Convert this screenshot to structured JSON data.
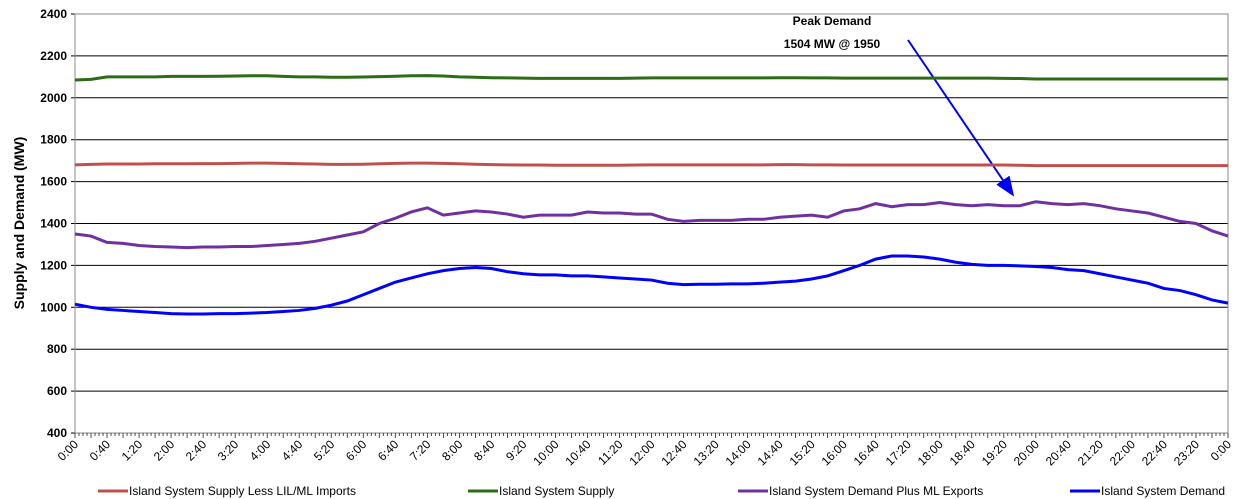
{
  "chart_data": {
    "type": "line",
    "y_label": "Supply and Demand (MW)",
    "annotation": [
      "Peak Demand",
      "1504 MW @ 1950"
    ],
    "categories": [
      "0:00",
      null,
      "0:40",
      null,
      "1:20",
      null,
      "2:00",
      null,
      "2:40",
      null,
      "3:20",
      null,
      "4:00",
      null,
      "4:40",
      null,
      "5:20",
      null,
      "6:00",
      null,
      "6:40",
      null,
      "7:20",
      null,
      "8:00",
      null,
      "8:40",
      null,
      "9:20",
      null,
      "10:00",
      null,
      "10:40",
      null,
      "11:20",
      null,
      "12:00",
      null,
      "12:40",
      null,
      "13:20",
      null,
      "14:00",
      null,
      "14:40",
      null,
      "15:20",
      null,
      "16:00",
      null,
      "16:40",
      null,
      "17:20",
      null,
      "18:00",
      null,
      "18:40",
      null,
      "19:20",
      null,
      "20:00",
      null,
      "20:40",
      null,
      "21:20",
      null,
      "22:00",
      null,
      "22:40",
      null,
      "23:20",
      null,
      "0:00"
    ],
    "series": [
      {
        "name": "Island System Supply Less LIL/ML Imports",
        "color": "#c0504d",
        "values": [
          1680,
          1682,
          1684,
          1684,
          1684,
          1685,
          1685,
          1685,
          1686,
          1686,
          1687,
          1688,
          1688,
          1687,
          1685,
          1684,
          1682,
          1682,
          1683,
          1685,
          1687,
          1688,
          1688,
          1687,
          1685,
          1683,
          1681,
          1680,
          1679,
          1679,
          1678,
          1678,
          1678,
          1678,
          1678,
          1679,
          1680,
          1680,
          1680,
          1680,
          1680,
          1680,
          1680,
          1680,
          1681,
          1681,
          1680,
          1680,
          1679,
          1679,
          1679,
          1679,
          1679,
          1679,
          1679,
          1679,
          1679,
          1679,
          1679,
          1678,
          1676,
          1676,
          1676,
          1676,
          1676,
          1676,
          1676,
          1676,
          1676,
          1676,
          1676,
          1676,
          1676
        ]
      },
      {
        "name": "Island System Supply",
        "color": "#2e6b17",
        "values": [
          2085,
          2088,
          2100,
          2100,
          2100,
          2100,
          2102,
          2102,
          2102,
          2103,
          2104,
          2105,
          2105,
          2102,
          2100,
          2100,
          2098,
          2098,
          2099,
          2101,
          2103,
          2105,
          2106,
          2104,
          2100,
          2098,
          2096,
          2095,
          2094,
          2093,
          2093,
          2093,
          2093,
          2093,
          2093,
          2094,
          2095,
          2095,
          2095,
          2095,
          2095,
          2095,
          2095,
          2095,
          2096,
          2096,
          2095,
          2095,
          2094,
          2094,
          2094,
          2094,
          2094,
          2094,
          2094,
          2094,
          2094,
          2094,
          2093,
          2092,
          2090,
          2090,
          2090,
          2090,
          2090,
          2090,
          2090,
          2090,
          2090,
          2090,
          2090,
          2090,
          2090
        ]
      },
      {
        "name": "Island System Demand Plus ML Exports",
        "color": "#7030a0",
        "values": [
          1350,
          1340,
          1310,
          1305,
          1295,
          1290,
          1288,
          1285,
          1288,
          1288,
          1290,
          1290,
          1295,
          1300,
          1305,
          1315,
          1330,
          1345,
          1360,
          1400,
          1425,
          1455,
          1475,
          1440,
          1450,
          1460,
          1455,
          1445,
          1430,
          1440,
          1440,
          1440,
          1455,
          1450,
          1450,
          1445,
          1445,
          1420,
          1410,
          1415,
          1415,
          1415,
          1420,
          1420,
          1430,
          1435,
          1440,
          1430,
          1460,
          1470,
          1495,
          1480,
          1490,
          1490,
          1500,
          1490,
          1485,
          1490,
          1485,
          1485,
          1504,
          1495,
          1490,
          1495,
          1485,
          1470,
          1460,
          1450,
          1430,
          1410,
          1400,
          1365,
          1340
        ]
      },
      {
        "name": "Island System Demand",
        "color": "#0000ff",
        "values": [
          1015,
          1000,
          990,
          985,
          980,
          975,
          970,
          968,
          968,
          970,
          970,
          972,
          975,
          980,
          985,
          995,
          1010,
          1030,
          1060,
          1090,
          1120,
          1140,
          1160,
          1175,
          1185,
          1190,
          1185,
          1170,
          1160,
          1155,
          1155,
          1150,
          1150,
          1145,
          1140,
          1135,
          1130,
          1115,
          1108,
          1110,
          1110,
          1112,
          1112,
          1115,
          1120,
          1125,
          1135,
          1150,
          1175,
          1200,
          1230,
          1245,
          1245,
          1240,
          1230,
          1215,
          1205,
          1200,
          1200,
          1198,
          1195,
          1190,
          1180,
          1175,
          1160,
          1145,
          1130,
          1115,
          1090,
          1080,
          1060,
          1035,
          1020
        ]
      }
    ],
    "ylim": [
      400,
      2400
    ],
    "yticks": [
      400,
      600,
      800,
      1000,
      1200,
      1400,
      1600,
      1800,
      2000,
      2200,
      2400
    ],
    "grid": true
  }
}
